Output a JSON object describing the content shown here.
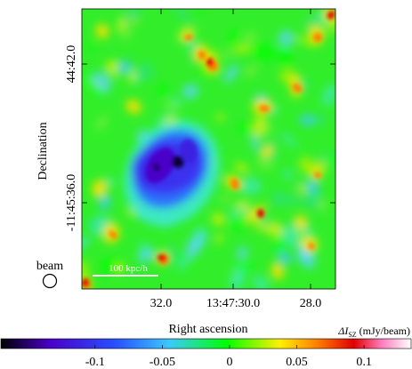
{
  "chart_data": {
    "type": "heatmap",
    "xlabel": "Right ascension",
    "ylabel": "Declination",
    "x_ticks": [
      "32.0",
      "13:47:30.0",
      "28.0"
    ],
    "y_ticks": [
      "44:42.0",
      "-11:45:36.0"
    ],
    "colorbar": {
      "label_prefix": "ΔI",
      "label_sub": "SZ",
      "label_unit": " (mJy/beam)",
      "range": [
        -0.17,
        0.135
      ],
      "ticks": [
        {
          "value": -0.1,
          "label": "-0.1"
        },
        {
          "value": -0.05,
          "label": "-0.05"
        },
        {
          "value": 0,
          "label": "0"
        },
        {
          "value": 0.05,
          "label": "0.05"
        },
        {
          "value": 0.1,
          "label": "0.1"
        }
      ],
      "colors": [
        "#000000",
        "#4a00c8",
        "#2850ff",
        "#3cc8ff",
        "#00ff00",
        "#fff000",
        "#ff8000",
        "#e00000",
        "#ff80c0",
        "#ffffff"
      ]
    },
    "annotations": {
      "beam_label": "beam",
      "scalebar_label": "100 kpc/h"
    },
    "features": {
      "decrement_min_mJy_per_beam": -0.16,
      "background_level_mJy_per_beam": 0.0
    }
  }
}
